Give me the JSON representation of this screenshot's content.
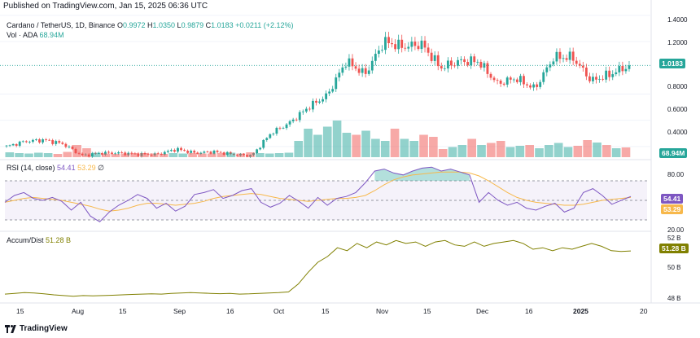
{
  "published": "Published on TradingView.com, Jan 15, 2025 06:36 UTC",
  "header": {
    "symbol": "Cardano / TetherUS, 1D, Binance",
    "o_label": "O",
    "o": "0.9972",
    "h_label": "H",
    "h": "1.0350",
    "l_label": "L",
    "l": "0.9879",
    "c_label": "C",
    "c": "1.0183",
    "change": "+0.0211 (+2.12%)",
    "vol_label": "Vol · ADA",
    "vol": "68.94M"
  },
  "rsi_header": {
    "label": "RSI (14, close)",
    "rsi": "54.41",
    "ma": "53.29",
    "sym": "∅"
  },
  "ad_header": {
    "label": "Accum/Dist",
    "value": "51.28 B"
  },
  "price_axis": [
    "1.4000",
    "1.2000",
    "1.0000",
    "0.8000",
    "0.6000",
    "0.4000"
  ],
  "price_tag": "1.0183",
  "vol_tag": "68.94M",
  "rsi_axis": [
    "80.00",
    "40.00",
    "20.00"
  ],
  "rsi_tags": {
    "rsi": "54.41",
    "ma": "53.29"
  },
  "ad_axis": [
    "52 B",
    "50 B",
    "48 B"
  ],
  "ad_tag": "51.28 B",
  "x_ticks": [
    "15",
    "Aug",
    "15",
    "Sep",
    "16",
    "Oct",
    "15",
    "Nov",
    "15",
    "Dec",
    "16",
    "2025",
    "20"
  ],
  "footer": {
    "brand": "TradingView",
    "logo": "tradingview-logo-icon"
  },
  "colors": {
    "up": "#26a69a",
    "down": "#ef5350",
    "rsi": "#7e57c2",
    "rsi_ma": "#f7b84b",
    "ad": "#808000"
  },
  "chart_data": [
    {
      "type": "candlestick",
      "title": "Cardano / TetherUS, 1D, Binance",
      "ylim": [
        0.3,
        1.43
      ],
      "last_close": 1.0183,
      "close_path": [
        {
          "x": "Jul 10",
          "y": 0.4
        },
        {
          "x": "Jul 15",
          "y": 0.44
        },
        {
          "x": "Jul 22",
          "y": 0.45
        },
        {
          "x": "Jul 29",
          "y": 0.42
        },
        {
          "x": "Aug 5",
          "y": 0.33
        },
        {
          "x": "Aug 10",
          "y": 0.35
        },
        {
          "x": "Aug 20",
          "y": 0.35
        },
        {
          "x": "Sep 1",
          "y": 0.34
        },
        {
          "x": "Sep 15",
          "y": 0.34
        },
        {
          "x": "Sep 30",
          "y": 0.38
        },
        {
          "x": "Oct 10",
          "y": 0.35
        },
        {
          "x": "Oct 20",
          "y": 0.36
        },
        {
          "x": "Nov 1",
          "y": 0.34
        },
        {
          "x": "Nov 5",
          "y": 0.33
        },
        {
          "x": "Nov 10",
          "y": 0.5
        },
        {
          "x": "Nov 13",
          "y": 0.58
        },
        {
          "x": "Nov 17",
          "y": 0.7
        },
        {
          "x": "Nov 20",
          "y": 0.79
        },
        {
          "x": "Nov 23",
          "y": 1.05
        },
        {
          "x": "Nov 27",
          "y": 0.95
        },
        {
          "x": "Dec 3",
          "y": 1.2
        },
        {
          "x": "Dec 5",
          "y": 1.16
        },
        {
          "x": "Dec 8",
          "y": 1.18
        },
        {
          "x": "Dec 10",
          "y": 1.0
        },
        {
          "x": "Dec 12",
          "y": 1.05
        },
        {
          "x": "Dec 16",
          "y": 1.05
        },
        {
          "x": "Dec 20",
          "y": 0.88
        },
        {
          "x": "Dec 25",
          "y": 0.92
        },
        {
          "x": "Dec 31",
          "y": 0.84
        },
        {
          "x": "Jan 3",
          "y": 1.08
        },
        {
          "x": "Jan 6",
          "y": 1.08
        },
        {
          "x": "Jan 9",
          "y": 0.9
        },
        {
          "x": "Jan 13",
          "y": 0.95
        },
        {
          "x": "Jan 15",
          "y": 1.0183
        }
      ]
    },
    {
      "type": "bar",
      "title": "Vol · ADA",
      "last": "68.94M",
      "relative_values": [
        12,
        10,
        9,
        11,
        10,
        8,
        13,
        30,
        22,
        11,
        9,
        8,
        9,
        10,
        10,
        9,
        8,
        10,
        9,
        10,
        9,
        9,
        10,
        11,
        9,
        12,
        10,
        9,
        10,
        11,
        40,
        70,
        55,
        75,
        90,
        60,
        55,
        65,
        45,
        40,
        70,
        45,
        40,
        55,
        50,
        20,
        25,
        30,
        45,
        30,
        35,
        40,
        25,
        28,
        30,
        22,
        30,
        35,
        25,
        28,
        42,
        36,
        30,
        22,
        24
      ]
    },
    {
      "type": "line",
      "title": "RSI (14, close)",
      "ylim": [
        20,
        90
      ],
      "bands": [
        30,
        50,
        70
      ],
      "series": [
        {
          "name": "RSI",
          "values": [
            48,
            55,
            58,
            52,
            50,
            53,
            49,
            40,
            48,
            34,
            28,
            38,
            45,
            50,
            56,
            52,
            42,
            47,
            39,
            44,
            56,
            58,
            61,
            52,
            55,
            60,
            62,
            48,
            43,
            47,
            55,
            49,
            42,
            53,
            45,
            52,
            54,
            58,
            68,
            80,
            82,
            78,
            76,
            80,
            83,
            84,
            80,
            82,
            79,
            76,
            48,
            58,
            50,
            45,
            48,
            42,
            40,
            44,
            47,
            38,
            42,
            58,
            62,
            55,
            46,
            50,
            54
          ]
        },
        {
          "name": "RSI MA",
          "values": [
            48,
            50,
            52,
            53,
            52,
            51,
            50,
            48,
            46,
            44,
            41,
            39,
            40,
            42,
            45,
            47,
            47,
            46,
            45,
            46,
            47,
            49,
            52,
            54,
            55,
            56,
            57,
            56,
            54,
            52,
            51,
            50,
            49,
            50,
            51,
            52,
            52,
            53,
            55,
            60,
            66,
            71,
            74,
            76,
            77,
            78,
            79,
            79,
            79,
            78,
            75,
            70,
            64,
            58,
            53,
            50,
            48,
            47,
            46,
            45,
            45,
            46,
            48,
            50,
            51,
            52,
            53
          ]
        }
      ]
    },
    {
      "type": "line",
      "title": "Accum/Dist",
      "ylim": [
        47.8,
        52.3
      ],
      "series": [
        {
          "name": "Accum/Dist",
          "values": [
            48.3,
            48.35,
            48.4,
            48.38,
            48.32,
            48.25,
            48.2,
            48.15,
            48.2,
            48.18,
            48.2,
            48.22,
            48.25,
            48.28,
            48.3,
            48.32,
            48.3,
            48.35,
            48.38,
            48.4,
            48.38,
            48.35,
            48.33,
            48.35,
            48.3,
            48.32,
            48.35,
            48.38,
            48.4,
            48.45,
            49.0,
            49.8,
            50.5,
            50.9,
            51.5,
            51.3,
            51.8,
            51.5,
            51.9,
            51.7,
            52.0,
            51.8,
            51.9,
            51.6,
            51.9,
            52.0,
            51.7,
            51.6,
            51.9,
            51.6,
            51.8,
            51.9,
            52.0,
            51.8,
            51.4,
            51.5,
            51.3,
            51.5,
            51.4,
            51.6,
            51.8,
            51.6,
            51.3,
            51.25,
            51.28
          ]
        }
      ]
    }
  ]
}
